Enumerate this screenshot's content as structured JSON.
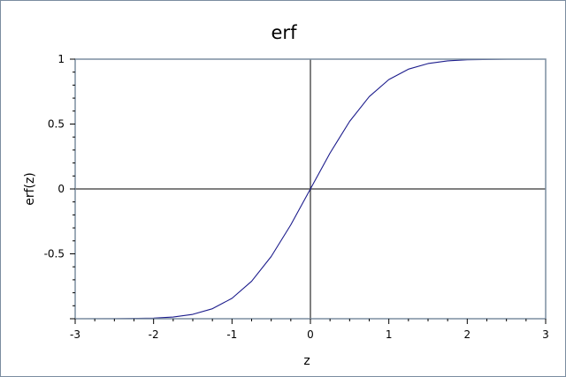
{
  "chart_data": {
    "type": "line",
    "title": "erf",
    "xlabel": "z",
    "ylabel": "erf(z)",
    "xlim": [
      -3,
      3
    ],
    "ylim": [
      -1,
      1
    ],
    "x_ticks": [
      -3,
      -2,
      -1,
      0,
      1,
      2,
      3
    ],
    "x_tick_labels": [
      "-3",
      "-2",
      "-1",
      "0",
      "1",
      "2",
      "3"
    ],
    "y_ticks": [
      1,
      0.5,
      0,
      -0.5
    ],
    "y_tick_labels": [
      "1",
      "0.5",
      "0",
      "-0.5"
    ],
    "grid": false,
    "zero_axes": true,
    "series": [
      {
        "x": [
          -3,
          -2.5,
          -2,
          -1.75,
          -1.5,
          -1.25,
          -1,
          -0.75,
          -0.5,
          -0.25,
          0,
          0.25,
          0.5,
          0.75,
          1,
          1.25,
          1.5,
          1.75,
          2,
          2.5,
          3
        ],
        "y": [
          -1.0,
          -0.9996,
          -0.9953,
          -0.9867,
          -0.9661,
          -0.9229,
          -0.8427,
          -0.7112,
          -0.5205,
          -0.2763,
          0.0,
          0.2763,
          0.5205,
          0.7112,
          0.8427,
          0.9229,
          0.9661,
          0.9867,
          0.9953,
          0.9996,
          1.0
        ],
        "color": "#1c1c8c"
      }
    ],
    "axis_frame_color": "#7b8da0"
  }
}
